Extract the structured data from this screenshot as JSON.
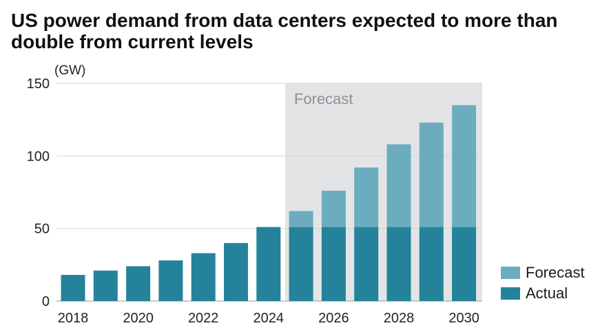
{
  "title": "US power demand from data centers expected to more than double from current levels",
  "chart_data": {
    "type": "bar",
    "stacked": true,
    "unit_label": "(GW)",
    "categories": [
      "2018",
      "2019",
      "2020",
      "2021",
      "2022",
      "2023",
      "2024",
      "2025",
      "2026",
      "2027",
      "2028",
      "2029",
      "2030"
    ],
    "x_tick_labels": [
      "2018",
      "2020",
      "2022",
      "2024",
      "2026",
      "2028",
      "2030"
    ],
    "y_ticks": [
      0,
      50,
      100,
      150
    ],
    "ylim": [
      0,
      150
    ],
    "series": [
      {
        "name": "Actual",
        "color": "#24839b",
        "values": [
          18,
          21,
          24,
          28,
          33,
          40,
          51,
          51,
          51,
          51,
          51,
          51,
          51
        ]
      },
      {
        "name": "Forecast",
        "color": "#6badbf",
        "values": [
          0,
          0,
          0,
          0,
          0,
          0,
          0,
          11,
          25,
          41,
          57,
          72,
          84
        ]
      }
    ],
    "forecast_region": {
      "label": "Forecast",
      "from": "2025",
      "to": "2030",
      "color": "#e3e4e6"
    },
    "grid": true,
    "legend": {
      "position": "bottom-right",
      "order": [
        "Forecast",
        "Actual"
      ]
    }
  }
}
